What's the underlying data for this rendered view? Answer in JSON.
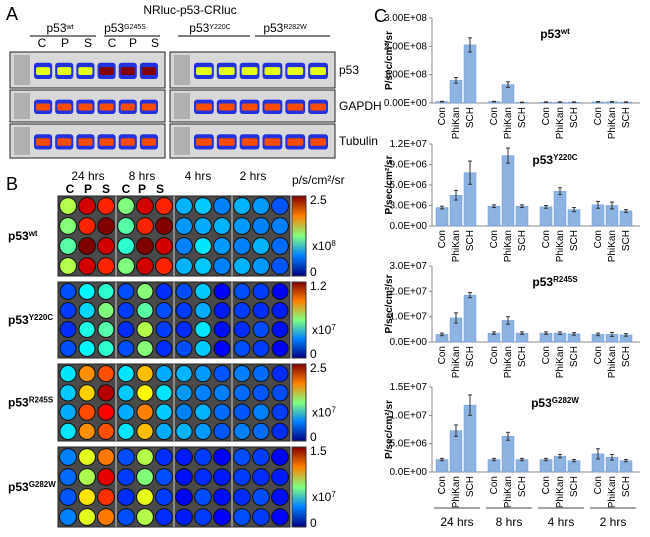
{
  "panel_a": {
    "letter": "A",
    "title": "NRluc-p53-CRluc",
    "lanes": [
      {
        "base": "p53",
        "sup": "wt"
      },
      {
        "base": "p53",
        "sup": "G245S"
      },
      {
        "base": "p53",
        "sup": "Y220C"
      },
      {
        "base": "p53",
        "sup": "R282W"
      }
    ],
    "conditions": [
      "C",
      "P",
      "S",
      "C",
      "P",
      "S"
    ],
    "blots": [
      "p53",
      "GAPDH",
      "Tubulin"
    ]
  },
  "panel_b": {
    "letter": "B",
    "times": [
      "24 hrs",
      "8 hrs",
      "4 hrs",
      "2 hrs"
    ],
    "conditions": [
      "C",
      "P",
      "S",
      "C",
      "P",
      "S"
    ],
    "unit": "p/s/cm²/sr",
    "rows": [
      {
        "base": "p53",
        "sup": "wt",
        "max": "2.5",
        "min": "0",
        "mult": "x10",
        "exp": "8"
      },
      {
        "base": "p53",
        "sup": "Y220C",
        "max": "1.2",
        "min": "0",
        "mult": "x10",
        "exp": "7"
      },
      {
        "base": "p53",
        "sup": "R245S",
        "max": "2.5",
        "min": "0",
        "mult": "x10",
        "exp": "7"
      },
      {
        "base": "p53",
        "sup": "G282W",
        "max": "1.5",
        "min": "0",
        "mult": "x10",
        "exp": "7"
      }
    ]
  },
  "panel_c": {
    "letter": "C"
  },
  "chart_data": [
    {
      "type": "bar",
      "title": "p53",
      "title_sup": "wt",
      "y_label": "P/sec/cm²/sr",
      "color": "#8db3e2",
      "categories": [
        "Con",
        "PhiKan",
        "SCH",
        "Con",
        "PhiKan",
        "SCH",
        "Con",
        "PhiKan",
        "SCH",
        "Con",
        "PhiKan",
        "SCH"
      ],
      "values": [
        5000000,
        80000000,
        205000000,
        5000000,
        65000000,
        2000000,
        3000000,
        3000000,
        3000000,
        4000000,
        4000000,
        3000000
      ],
      "errors": [
        1000000,
        10000000,
        25000000,
        1000000,
        10000000,
        1000000,
        1000000,
        1000000,
        1000000,
        1000000,
        1000000,
        1000000
      ],
      "ylim": [
        0,
        300000000
      ],
      "yticks": [
        {
          "value": 0,
          "label": "0.00E+00"
        },
        {
          "value": 100000000,
          "label": "1.00E+08"
        },
        {
          "value": 200000000,
          "label": "2.00E+08"
        },
        {
          "value": 300000000,
          "label": "3.00E+08"
        }
      ]
    },
    {
      "type": "bar",
      "title": "p53",
      "title_sup": "Y220C",
      "y_label": "P/sec/cm²/sr",
      "color": "#8db3e2",
      "categories": [
        "Con",
        "PhiKan",
        "SCH",
        "Con",
        "PhiKan",
        "SCH",
        "Con",
        "PhiKan",
        "SCH",
        "Con",
        "PhiKan",
        "SCH"
      ],
      "values": [
        2700000,
        4500000,
        7800000,
        2900000,
        10300000,
        2900000,
        2800000,
        5100000,
        2400000,
        3100000,
        3000000,
        2200000
      ],
      "errors": [
        200000,
        700000,
        1700000,
        200000,
        1100000,
        200000,
        200000,
        500000,
        300000,
        500000,
        500000,
        200000
      ],
      "ylim": [
        0,
        12000000
      ],
      "yticks": [
        {
          "value": 0,
          "label": "0.0E+00"
        },
        {
          "value": 3000000,
          "label": "3.0E+06"
        },
        {
          "value": 6000000,
          "label": "6.0E+06"
        },
        {
          "value": 9000000,
          "label": "9.0E+06"
        },
        {
          "value": 12000000,
          "label": "1.2E+07"
        }
      ]
    },
    {
      "type": "bar",
      "title": "p53",
      "title_sup": "R245S",
      "y_label": "P/sec/cm²/sr",
      "color": "#8db3e2",
      "categories": [
        "Con",
        "PhiKan",
        "SCH",
        "Con",
        "PhiKan",
        "SCH",
        "Con",
        "PhiKan",
        "SCH",
        "Con",
        "PhiKan",
        "SCH"
      ],
      "values": [
        3000000,
        9500000,
        18500000,
        3500000,
        8500000,
        3500000,
        3500000,
        3500000,
        3200000,
        3000000,
        3000000,
        2800000
      ],
      "errors": [
        500000,
        2000000,
        1000000,
        500000,
        1500000,
        500000,
        500000,
        500000,
        500000,
        500000,
        800000,
        500000
      ],
      "ylim": [
        0,
        30000000
      ],
      "yticks": [
        {
          "value": 0,
          "label": "0.0E+00"
        },
        {
          "value": 10000000,
          "label": "1.0E+07"
        },
        {
          "value": 20000000,
          "label": "2.0E+07"
        },
        {
          "value": 30000000,
          "label": "3.0E+07"
        }
      ]
    },
    {
      "type": "bar",
      "title": "p53",
      "title_sup": "G282W",
      "y_label": "P/sec/cm²/sr",
      "color": "#8db3e2",
      "categories": [
        "Con",
        "PhiKan",
        "SCH",
        "Con",
        "PhiKan",
        "SCH",
        "Con",
        "PhiKan",
        "SCH",
        "Con",
        "PhiKan",
        "SCH"
      ],
      "values": [
        2200000,
        7300000,
        11800000,
        2200000,
        6300000,
        2200000,
        2200000,
        2800000,
        2000000,
        3200000,
        2600000,
        2000000
      ],
      "errors": [
        200000,
        1000000,
        1800000,
        200000,
        700000,
        200000,
        200000,
        300000,
        200000,
        900000,
        500000,
        200000
      ],
      "ylim": [
        0,
        15000000
      ],
      "yticks": [
        {
          "value": 0,
          "label": "0.0E+00"
        },
        {
          "value": 5000000,
          "label": "5.0E+06"
        },
        {
          "value": 10000000,
          "label": "1.0E+07"
        },
        {
          "value": 15000000,
          "label": "1.5E+07"
        }
      ],
      "groups": [
        "24 hrs",
        "8 hrs",
        "4 hrs",
        "2 hrs"
      ]
    }
  ]
}
